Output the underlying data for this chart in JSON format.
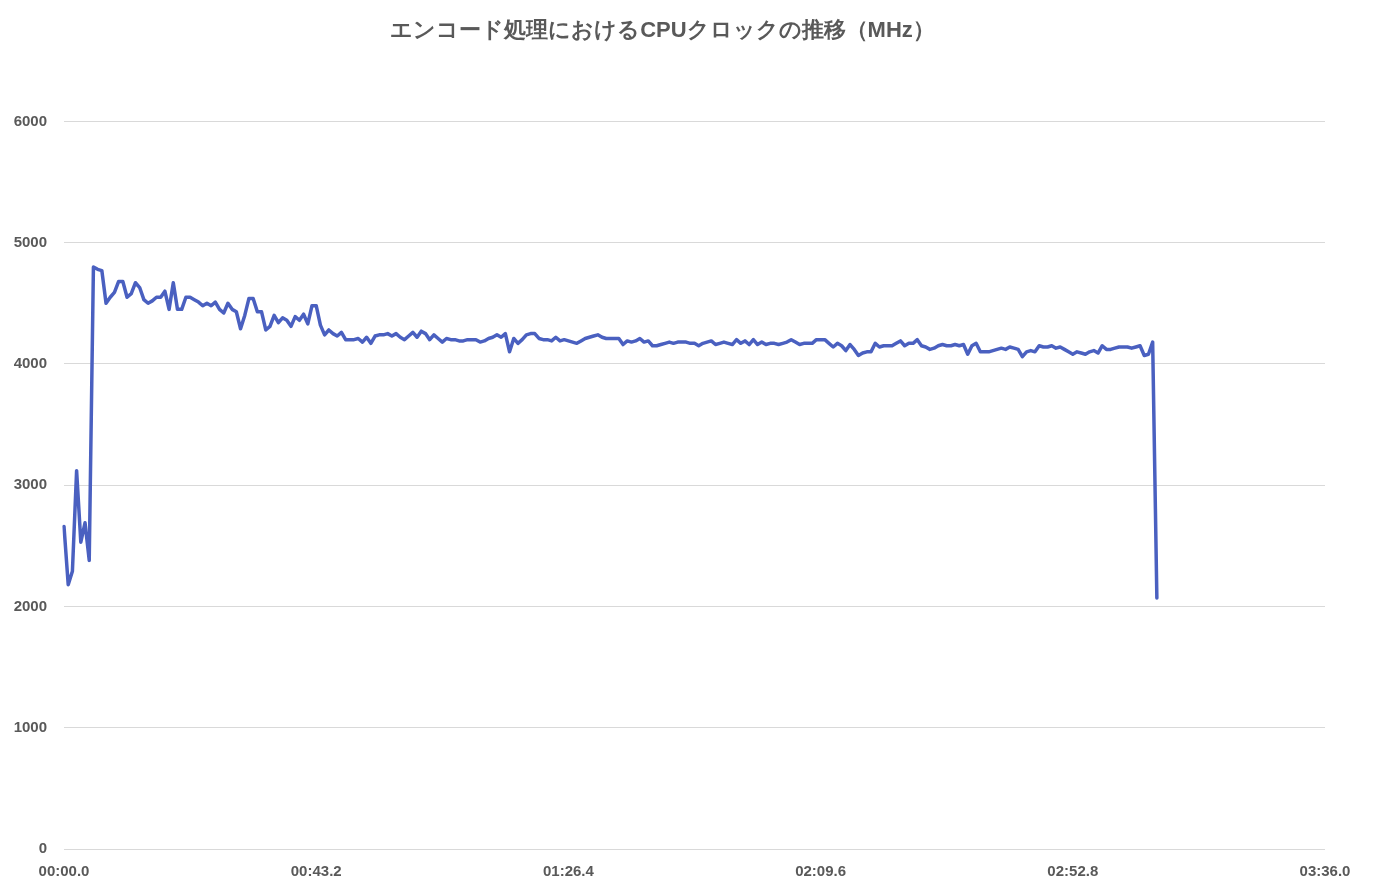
{
  "chart_data": {
    "type": "line",
    "title": "エンコード処理におけるCPUクロックの推移（MHz）",
    "categories": [
      "00:00.0",
      null,
      null,
      null,
      null,
      null,
      null,
      null,
      null,
      null,
      null,
      null,
      null,
      null,
      null,
      null,
      null,
      null,
      null,
      null,
      null,
      null,
      null,
      null,
      null,
      null,
      null,
      null,
      null,
      null,
      null,
      null,
      null,
      null,
      null,
      null,
      null,
      null,
      null,
      null,
      null,
      null,
      null,
      null,
      null,
      null,
      null,
      null,
      null,
      null,
      null,
      null,
      null,
      null,
      null,
      null,
      null,
      null,
      null,
      null,
      "00:43.2",
      null,
      null,
      null,
      null,
      null,
      null,
      null,
      null,
      null,
      null,
      null,
      null,
      null,
      null,
      null,
      null,
      null,
      null,
      null,
      null,
      null,
      null,
      null,
      null,
      null,
      null,
      null,
      null,
      null,
      null,
      null,
      null,
      null,
      null,
      null,
      null,
      null,
      null,
      null,
      null,
      null,
      null,
      null,
      null,
      null,
      null,
      null,
      null,
      null,
      null,
      null,
      null,
      null,
      null,
      null,
      null,
      null,
      null,
      null,
      "01:26.4",
      null,
      null,
      null,
      null,
      null,
      null,
      null,
      null,
      null,
      null,
      null,
      null,
      null,
      null,
      null,
      null,
      null,
      null,
      null,
      null,
      null,
      null,
      null,
      null,
      null,
      null,
      null,
      null,
      null,
      null,
      null,
      null,
      null,
      null,
      null,
      null,
      null,
      null,
      null,
      null,
      null,
      null,
      null,
      null,
      null,
      null,
      null,
      null,
      null,
      null,
      null,
      null,
      null,
      null,
      null,
      null,
      null,
      null,
      null,
      "02:09.6",
      null,
      null,
      null,
      null,
      null,
      null,
      null,
      null,
      null,
      null,
      null,
      null,
      null,
      null,
      null,
      null,
      null,
      null,
      null,
      null,
      null,
      null,
      null,
      null,
      null,
      null,
      null,
      null,
      null,
      null,
      null,
      null,
      null,
      null,
      null,
      null,
      null,
      null,
      null,
      null,
      null,
      null,
      null,
      null,
      null,
      null,
      null,
      null,
      null,
      null,
      null,
      null,
      null,
      null,
      null,
      null,
      null,
      null,
      null,
      "02:52.8",
      null,
      null,
      null,
      null,
      null,
      null,
      null,
      null,
      null,
      null,
      null,
      null,
      null,
      null,
      null,
      null,
      null,
      null,
      null,
      null,
      null,
      null,
      null,
      null,
      null,
      null,
      null,
      null,
      null,
      null,
      null,
      null,
      null,
      null,
      null,
      null,
      null,
      null,
      null,
      null,
      null,
      null,
      null,
      null,
      null,
      null,
      null,
      null,
      null,
      null,
      null,
      null,
      null,
      null,
      null,
      null,
      null,
      null,
      null,
      "03:36.0"
    ],
    "values": [
      2660,
      2180,
      2290,
      3120,
      2530,
      2690,
      2380,
      4800,
      4780,
      4770,
      4500,
      4550,
      4590,
      4680,
      4680,
      4550,
      4580,
      4670,
      4630,
      4530,
      4500,
      4520,
      4550,
      4550,
      4600,
      4450,
      4670,
      4450,
      4450,
      4550,
      4550,
      4530,
      4510,
      4480,
      4500,
      4480,
      4510,
      4450,
      4420,
      4500,
      4450,
      4430,
      4290,
      4400,
      4540,
      4540,
      4430,
      4430,
      4280,
      4310,
      4400,
      4340,
      4380,
      4360,
      4310,
      4390,
      4360,
      4410,
      4330,
      4480,
      4480,
      4320,
      4240,
      4280,
      4250,
      4230,
      4260,
      4200,
      4200,
      4200,
      4210,
      4180,
      4220,
      4170,
      4230,
      4240,
      4240,
      4250,
      4230,
      4250,
      4220,
      4200,
      4230,
      4260,
      4220,
      4270,
      4250,
      4200,
      4240,
      4210,
      4180,
      4210,
      4200,
      4200,
      4190,
      4190,
      4200,
      4200,
      4200,
      4180,
      4190,
      4210,
      4220,
      4240,
      4220,
      4250,
      4100,
      4210,
      4170,
      4200,
      4240,
      4250,
      4250,
      4210,
      4200,
      4200,
      4190,
      4220,
      4190,
      4200,
      4190,
      4180,
      4170,
      4190,
      4210,
      4220,
      4230,
      4240,
      4220,
      4210,
      4210,
      4210,
      4210,
      4160,
      4190,
      4180,
      4190,
      4210,
      4180,
      4190,
      4150,
      4150,
      4160,
      4170,
      4180,
      4170,
      4180,
      4180,
      4180,
      4170,
      4170,
      4150,
      4170,
      4180,
      4190,
      4160,
      4170,
      4180,
      4170,
      4160,
      4200,
      4170,
      4190,
      4160,
      4200,
      4160,
      4180,
      4160,
      4170,
      4170,
      4160,
      4170,
      4180,
      4200,
      4180,
      4160,
      4170,
      4170,
      4170,
      4200,
      4200,
      4200,
      4170,
      4140,
      4170,
      4150,
      4110,
      4160,
      4120,
      4070,
      4090,
      4100,
      4100,
      4170,
      4140,
      4150,
      4150,
      4150,
      4170,
      4190,
      4150,
      4170,
      4170,
      4200,
      4150,
      4140,
      4120,
      4130,
      4150,
      4160,
      4150,
      4150,
      4160,
      4150,
      4160,
      4080,
      4150,
      4170,
      4100,
      4100,
      4100,
      4110,
      4120,
      4130,
      4120,
      4140,
      4130,
      4120,
      4060,
      4100,
      4110,
      4100,
      4150,
      4140,
      4140,
      4150,
      4130,
      4140,
      4120,
      4100,
      4080,
      4100,
      4090,
      4080,
      4100,
      4110,
      4090,
      4150,
      4120,
      4120,
      4130,
      4140,
      4140,
      4140,
      4130,
      4140,
      4150,
      4070,
      4080,
      4180,
      2070,
      null,
      null,
      null,
      null,
      null,
      null,
      null,
      null,
      null,
      null,
      null,
      null,
      null,
      null,
      null,
      null,
      null,
      null,
      null,
      null,
      null,
      null,
      null,
      null,
      null,
      null,
      null,
      null,
      null,
      null,
      null,
      null,
      null,
      null,
      null,
      null,
      null,
      null,
      null,
      null
    ],
    "color": "#4a60c0",
    "marker": "none",
    "ylim": [
      0,
      6000
    ],
    "yticks": [
      0,
      1000,
      2000,
      3000,
      4000,
      5000,
      6000
    ],
    "grid": "y"
  }
}
